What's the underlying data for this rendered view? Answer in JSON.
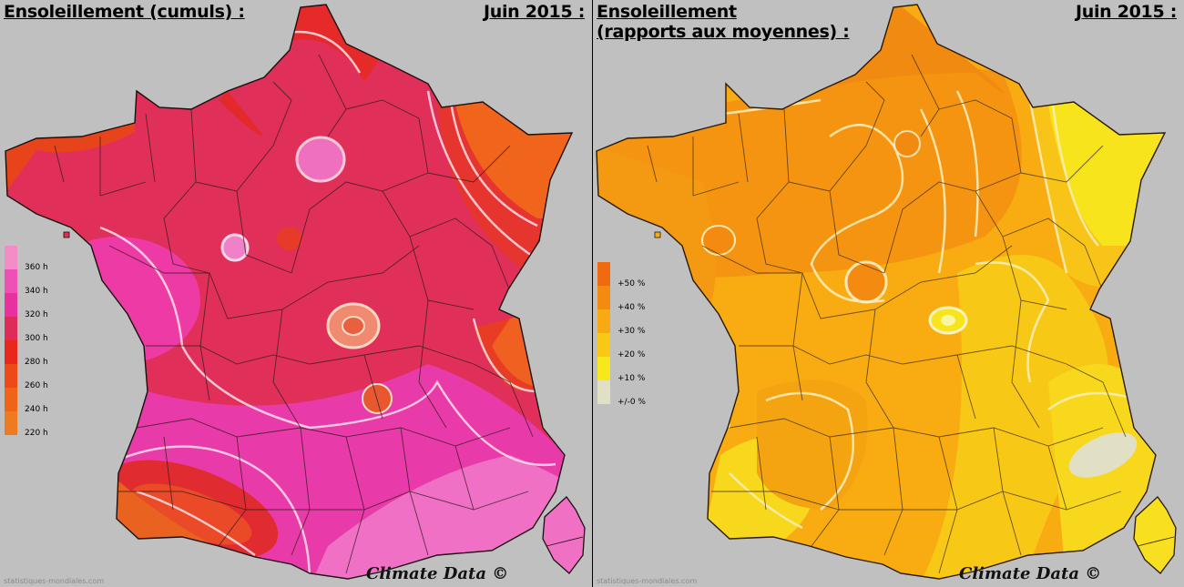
{
  "left_panel": {
    "title": "Ensoleillement (cumuls) :",
    "date": "Juin 2015 :",
    "legend": [
      {
        "label": "360 h",
        "color": "#f48cc8"
      },
      {
        "label": "340 h",
        "color": "#ee50b4"
      },
      {
        "label": "320 h",
        "color": "#e8309e"
      },
      {
        "label": "300 h",
        "color": "#e02a5a"
      },
      {
        "label": "280 h",
        "color": "#e8281c"
      },
      {
        "label": "260 h",
        "color": "#ee4a18"
      },
      {
        "label": "240 h",
        "color": "#f0641a"
      },
      {
        "label": "220 h",
        "color": "#f07a20"
      }
    ],
    "credit": "Climate Data ©",
    "source": "statistiques-mondiales.com"
  },
  "right_panel": {
    "title_line1": "Ensoleillement",
    "title_line2": "(rapports aux moyennes) :",
    "date": "Juin 2015 :",
    "legend": [
      {
        "label": "+50 %",
        "color": "#f06a10"
      },
      {
        "label": "+40 %",
        "color": "#f48a10"
      },
      {
        "label": "+30 %",
        "color": "#f8aa12"
      },
      {
        "label": "+20 %",
        "color": "#f8c814"
      },
      {
        "label": "+10 %",
        "color": "#f8e81a"
      },
      {
        "label": "+/-0 %",
        "color": "#e0e0c4"
      }
    ],
    "credit": "Climate Data ©",
    "source": "statistiques-mondiales.com"
  }
}
